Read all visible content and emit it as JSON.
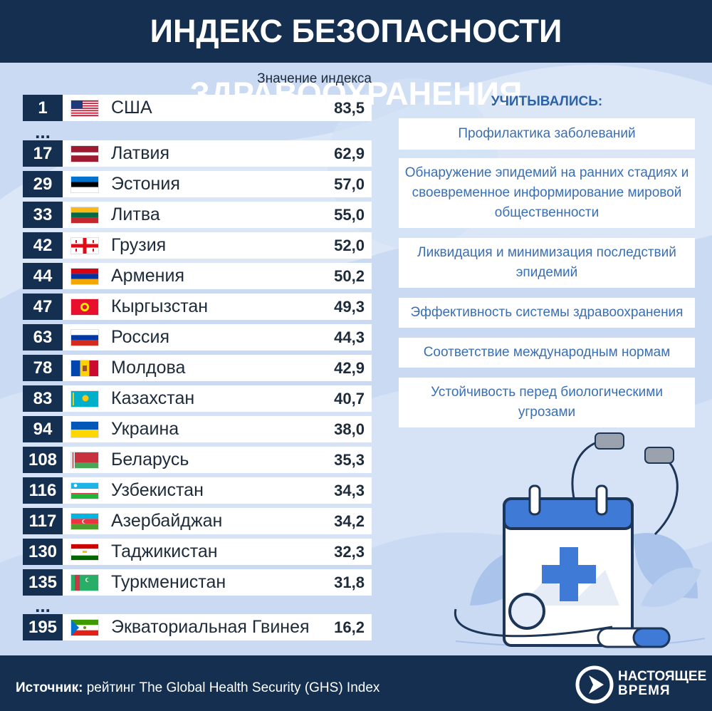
{
  "header": {
    "title": "ИНДЕКС БЕЗОПАСНОСТИ ЗДРАВООХРАНЕНИЯ"
  },
  "chart_data": {
    "type": "table",
    "column_label": "Значение индекса",
    "rows": [
      {
        "rank": "1",
        "country": "США",
        "value": "83,5",
        "flag": "us"
      },
      {
        "rank": "17",
        "country": "Латвия",
        "value": "62,9",
        "flag": "lv"
      },
      {
        "rank": "29",
        "country": "Эстония",
        "value": "57,0",
        "flag": "ee"
      },
      {
        "rank": "33",
        "country": "Литва",
        "value": "55,0",
        "flag": "lt"
      },
      {
        "rank": "42",
        "country": "Грузия",
        "value": "52,0",
        "flag": "ge"
      },
      {
        "rank": "44",
        "country": "Армения",
        "value": "50,2",
        "flag": "am"
      },
      {
        "rank": "47",
        "country": "Кыргызстан",
        "value": "49,3",
        "flag": "kg"
      },
      {
        "rank": "63",
        "country": "Россия",
        "value": "44,3",
        "flag": "ru"
      },
      {
        "rank": "78",
        "country": "Молдова",
        "value": "42,9",
        "flag": "md"
      },
      {
        "rank": "83",
        "country": "Казахстан",
        "value": "40,7",
        "flag": "kz"
      },
      {
        "rank": "94",
        "country": "Украина",
        "value": "38,0",
        "flag": "ua"
      },
      {
        "rank": "108",
        "country": "Беларусь",
        "value": "35,3",
        "flag": "by"
      },
      {
        "rank": "116",
        "country": "Узбекистан",
        "value": "34,3",
        "flag": "uz"
      },
      {
        "rank": "117",
        "country": "Азербайджан",
        "value": "34,2",
        "flag": "az"
      },
      {
        "rank": "130",
        "country": "Таджикистан",
        "value": "32,3",
        "flag": "tj"
      },
      {
        "rank": "135",
        "country": "Туркменистан",
        "value": "31,8",
        "flag": "tm"
      },
      {
        "rank": "195",
        "country": "Экваториальная Гвинея",
        "value": "16,2",
        "flag": "gq"
      }
    ],
    "ellipsis": "..."
  },
  "criteria": {
    "title": "УЧИТЫВАЛИСЬ:",
    "items": [
      "Профилактика заболеваний",
      "Обнаружение эпидемий на ранних стадиях и своевременное информирование мировой общественности",
      "Ликвидация и минимизация последствий эпидемий",
      "Эффективность системы здравоохранения",
      "Соответствие международным нормам",
      "Устойчивость перед биологическими угрозами"
    ]
  },
  "footer": {
    "source_label": "Источник:",
    "source_text": " рейтинг The Global Health Security (GHS) Index",
    "logo_line1": "НАСТОЯЩЕЕ",
    "logo_line2": "ВРЕМЯ"
  },
  "colors": {
    "navy": "#142f4f",
    "accent": "#2c62a8",
    "background": "#c9daf2"
  },
  "icons": [
    "calendar-icon",
    "medical-cross-icon",
    "stethoscope-icon",
    "leaf-icon",
    "logo-play-icon"
  ]
}
